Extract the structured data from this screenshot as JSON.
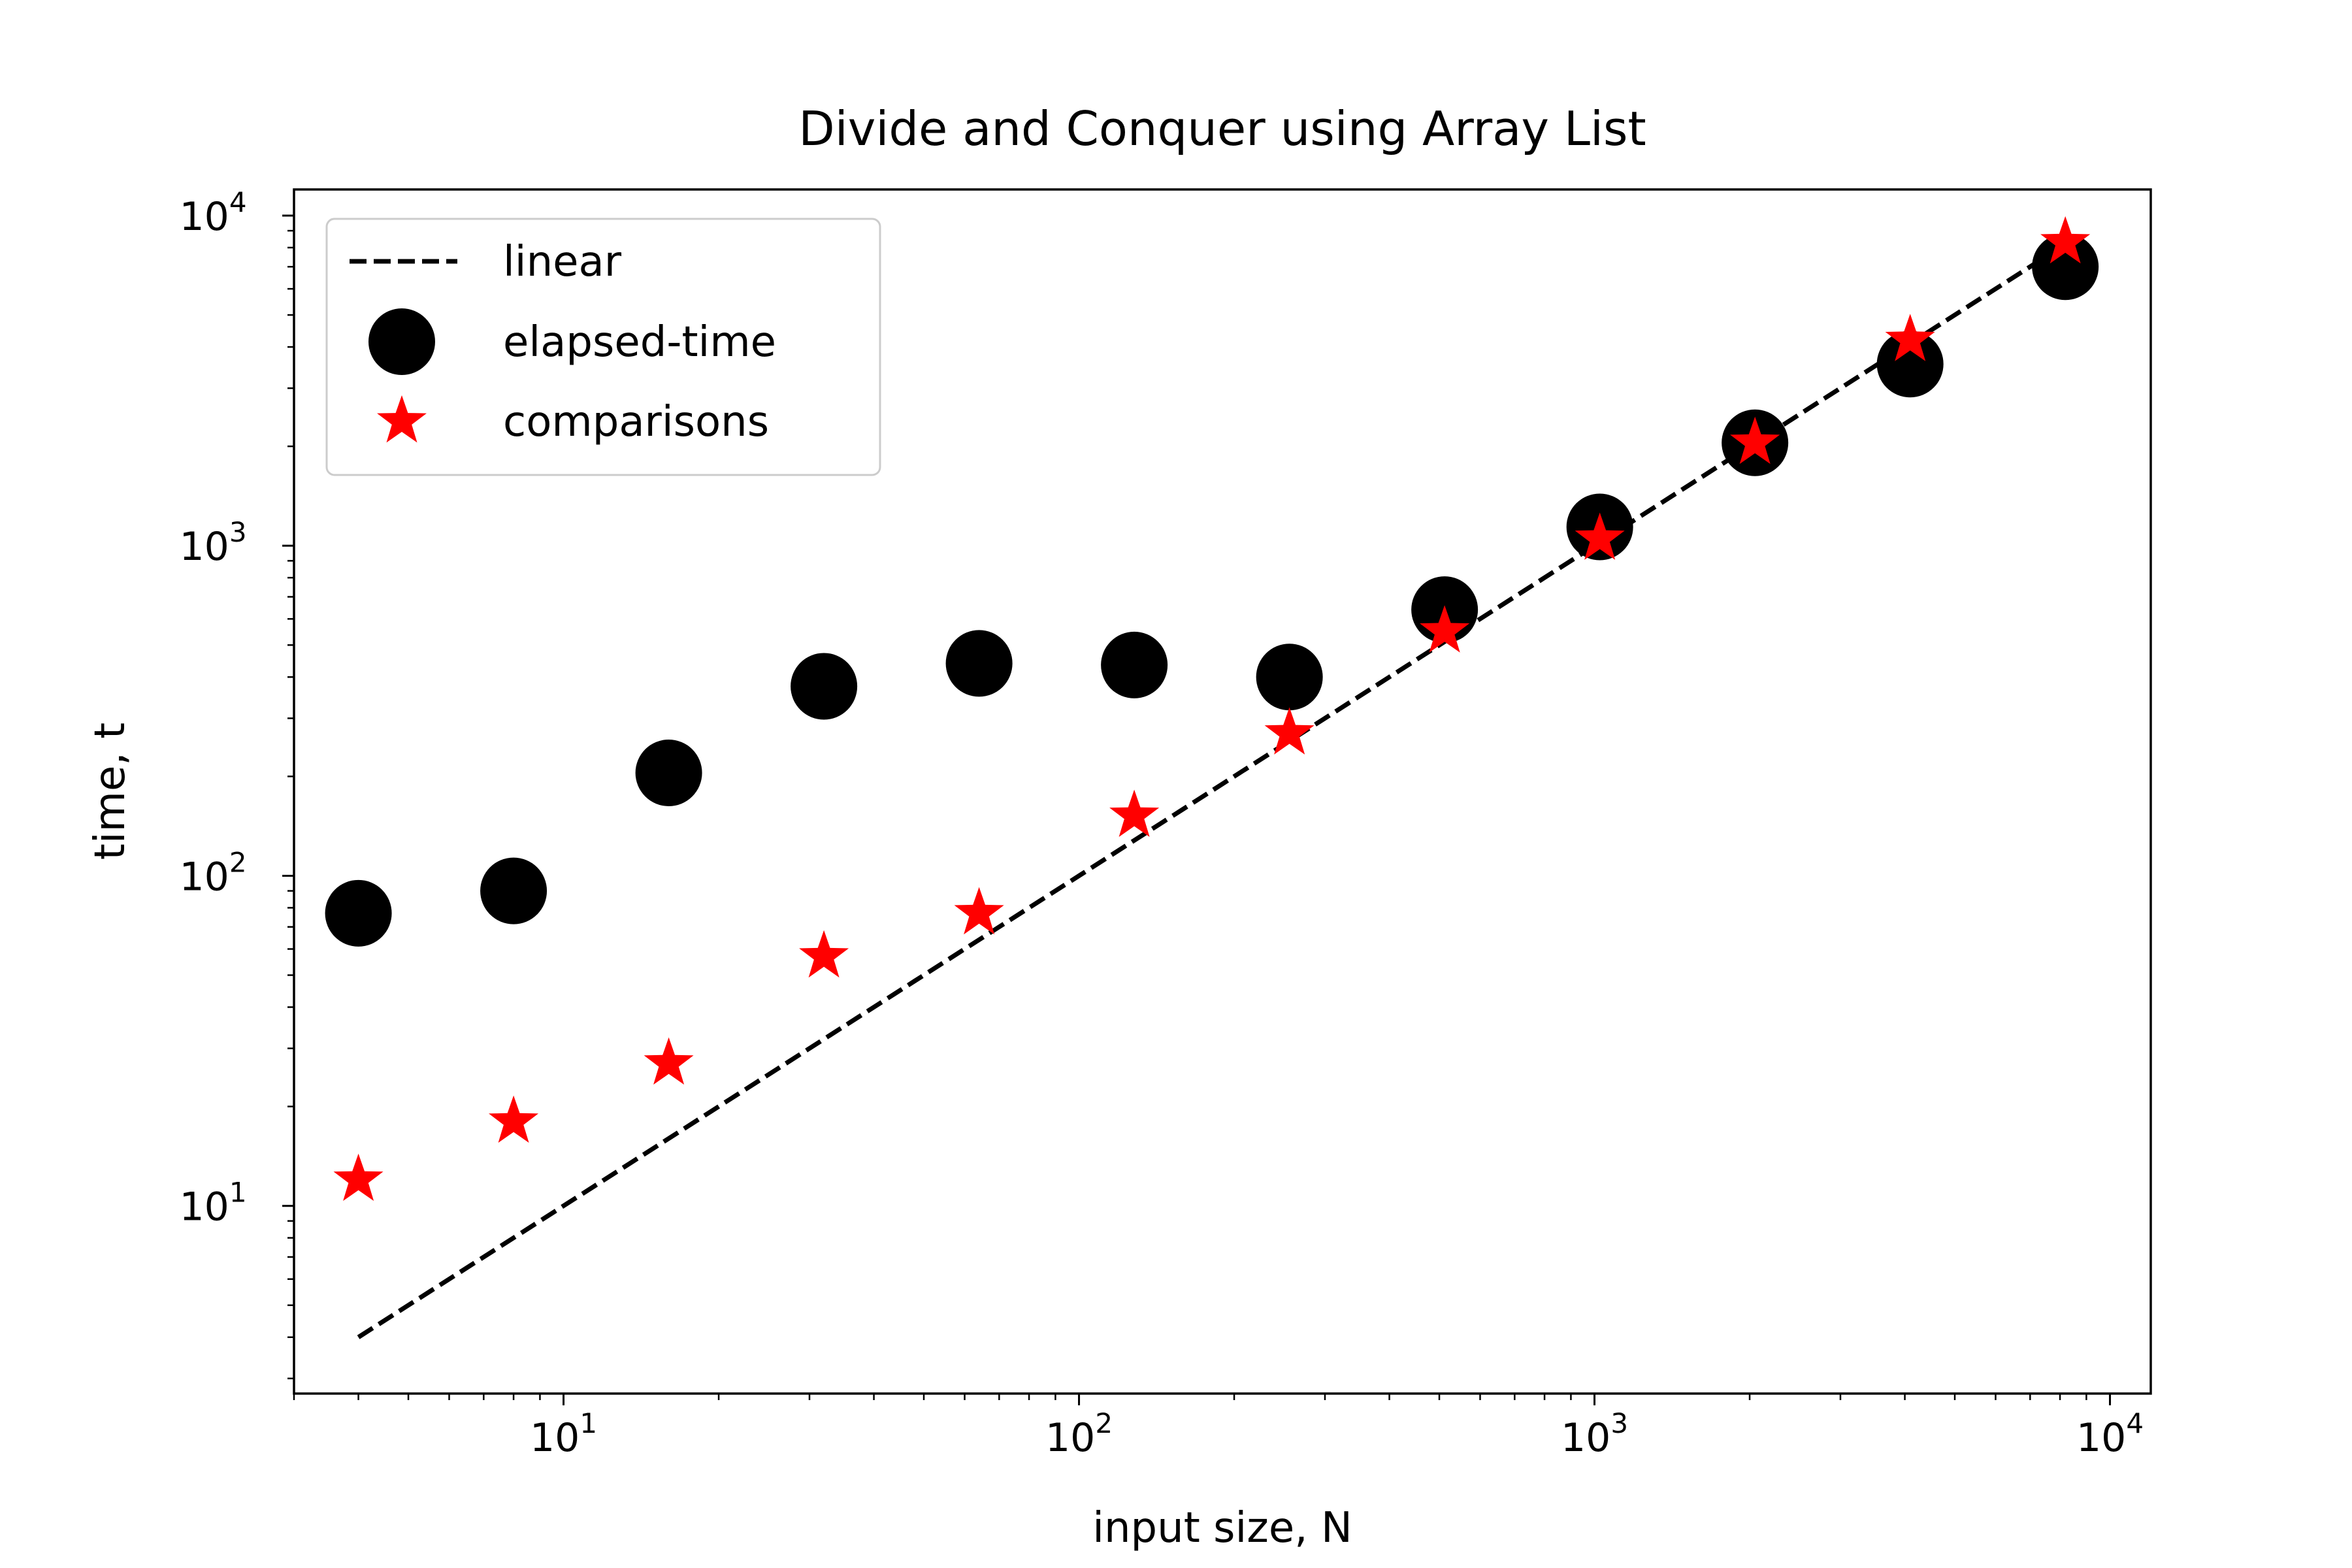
{
  "chart_data": {
    "type": "scatter",
    "title": "Divide and Conquer using Array List",
    "xlabel": "input size, N",
    "ylabel": "time, t",
    "xscale": "log",
    "yscale": "log",
    "xlim": [
      3,
      12000
    ],
    "ylim": [
      2.7,
      12000
    ],
    "xticks": [
      10,
      100,
      1000,
      10000
    ],
    "yticks": [
      10,
      100,
      1000,
      10000
    ],
    "tick_base": "10",
    "xtick_exponents": [
      "1",
      "2",
      "3",
      "4"
    ],
    "ytick_exponents": [
      "1",
      "2",
      "3",
      "4"
    ],
    "grid": false,
    "legend_position": "upper-left",
    "series": [
      {
        "name": "linear",
        "style": "dashed-line",
        "color": "#000000",
        "x": [
          4,
          8192
        ],
        "y": [
          4,
          8192
        ]
      },
      {
        "name": "elapsed-time",
        "style": "circle-marker",
        "color": "#000000",
        "x": [
          4,
          8,
          16,
          32,
          64,
          128,
          256,
          512,
          1024,
          2048,
          4096,
          8192
        ],
        "y": [
          77,
          90,
          205,
          375,
          440,
          435,
          400,
          640,
          1140,
          2050,
          3550,
          7000
        ]
      },
      {
        "name": "comparisons",
        "style": "star-marker",
        "color": "#ff0000",
        "x": [
          4,
          8,
          16,
          32,
          64,
          128,
          256,
          512,
          1024,
          2048,
          4096,
          8192
        ],
        "y": [
          12,
          18,
          27,
          57,
          77,
          152,
          270,
          550,
          1050,
          2050,
          4200,
          8300
        ]
      }
    ]
  }
}
